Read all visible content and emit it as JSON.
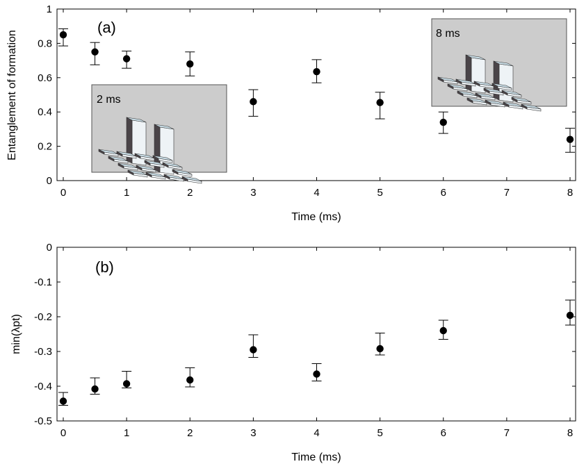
{
  "chart_data": [
    {
      "type": "scatter",
      "panel_label": "(a)",
      "xlabel": "Time (ms)",
      "ylabel": "Entanglement of formation",
      "xlim": [
        0,
        8
      ],
      "ylim": [
        0,
        1
      ],
      "xticks": [
        "0",
        "1",
        "2",
        "3",
        "4",
        "5",
        "6",
        "7",
        "8"
      ],
      "yticks": [
        "0",
        "0.2",
        "0.4",
        "0.6",
        "0.8",
        "1"
      ],
      "grid": false,
      "marker_color": "#000000",
      "series": [
        {
          "x": [
            0,
            0.5,
            1,
            2,
            3,
            4,
            5,
            6,
            8
          ],
          "y": [
            0.85,
            0.75,
            0.71,
            0.68,
            0.46,
            0.635,
            0.455,
            0.34,
            0.24
          ],
          "err_low": [
            0.065,
            0.075,
            0.055,
            0.07,
            0.085,
            0.065,
            0.095,
            0.065,
            0.075
          ],
          "err_high": [
            0.035,
            0.055,
            0.045,
            0.07,
            0.07,
            0.07,
            0.06,
            0.06,
            0.065
          ]
        }
      ],
      "insets": [
        {
          "label": "2 ms",
          "background": "#cccccc"
        },
        {
          "label": "8 ms",
          "background": "#cccccc"
        }
      ]
    },
    {
      "type": "scatter",
      "panel_label": "(b)",
      "xlabel": "Time (ms)",
      "ylabel": "min(λpt)",
      "xlim": [
        0,
        8
      ],
      "ylim": [
        -0.5,
        0
      ],
      "xticks": [
        "0",
        "1",
        "2",
        "3",
        "4",
        "5",
        "6",
        "7",
        "8"
      ],
      "yticks": [
        "-0.5",
        "-0.4",
        "-0.3",
        "-0.2",
        "-0.1",
        "0"
      ],
      "grid": false,
      "marker_color": "#000000",
      "series": [
        {
          "x": [
            0,
            0.5,
            1,
            2,
            3,
            4,
            5,
            6,
            8
          ],
          "y": [
            -0.443,
            -0.408,
            -0.393,
            -0.382,
            -0.295,
            -0.365,
            -0.292,
            -0.24,
            -0.196
          ],
          "err_low": [
            0.012,
            0.015,
            0.012,
            0.02,
            0.022,
            0.02,
            0.018,
            0.025,
            0.028
          ],
          "err_high": [
            0.025,
            0.032,
            0.036,
            0.035,
            0.043,
            0.03,
            0.045,
            0.03,
            0.044
          ]
        }
      ]
    }
  ]
}
